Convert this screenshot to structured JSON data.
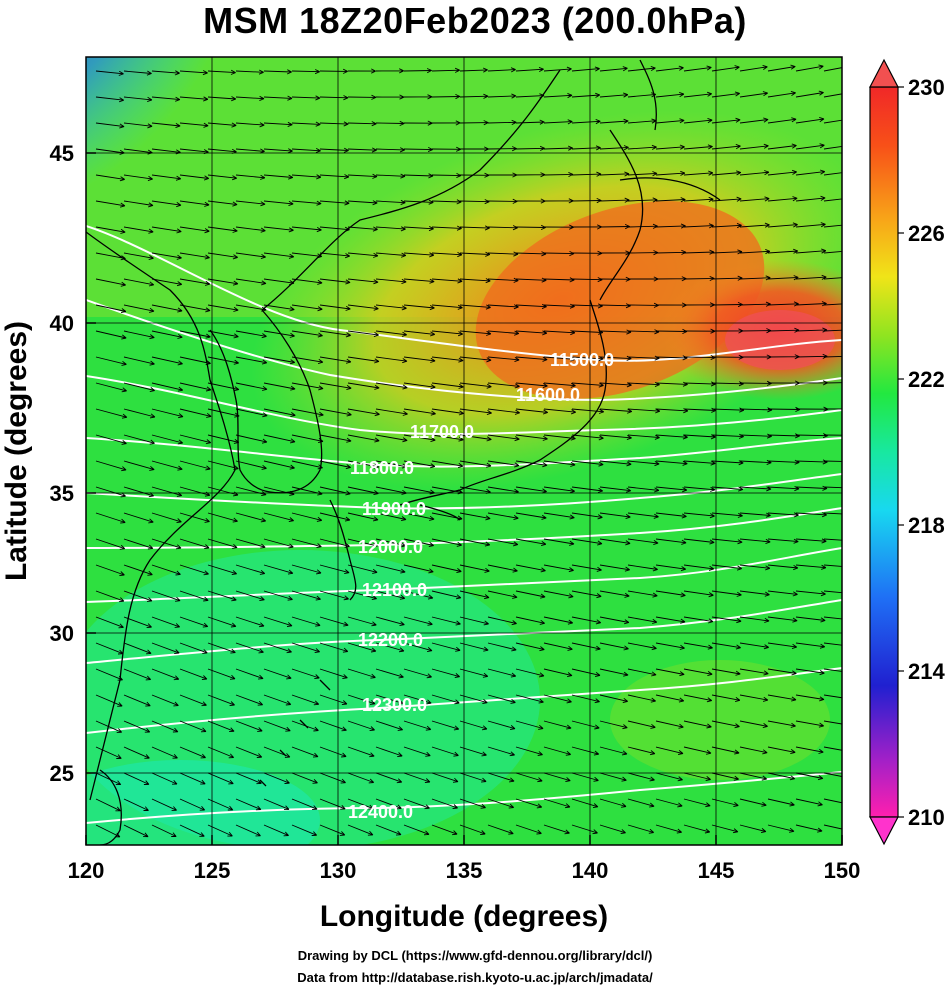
{
  "title": "MSM 18Z20Feb2023 (200.0hPa)",
  "axes": {
    "xlabel": "Longitude (degrees)",
    "ylabel": "Latitude  (degrees)",
    "xlim": [
      120,
      150
    ],
    "ylim": [
      22.4,
      47.6
    ],
    "xticks": [
      "120",
      "125",
      "130",
      "135",
      "140",
      "145",
      "150"
    ],
    "yticks": [
      "25",
      "30",
      "35",
      "40",
      "45"
    ]
  },
  "colorbar": {
    "ticks": [
      "210",
      "214",
      "218",
      "222",
      "226",
      "230"
    ],
    "range": [
      210,
      230
    ],
    "colors": [
      "#ff1fae",
      "#a020c8",
      "#2020d0",
      "#1f6ff5",
      "#18d8f0",
      "#18e8a0",
      "#22e840",
      "#90e420",
      "#f0e418",
      "#f8a418",
      "#f85018",
      "#f02828"
    ]
  },
  "contours": {
    "color": "#ffffff",
    "labels": [
      "11500.0",
      "11600.0",
      "11700.0",
      "11800.0",
      "11900.0",
      "12000.0",
      "12100.0",
      "12200.0",
      "12300.0",
      "12400.0"
    ]
  },
  "credits": {
    "line1": "Drawing by DCL (https://www.gfd-dennou.org/library/dcl/)",
    "line2": "Data from http://database.rish.kyoto-u.ac.jp/arch/jmadata/"
  }
}
